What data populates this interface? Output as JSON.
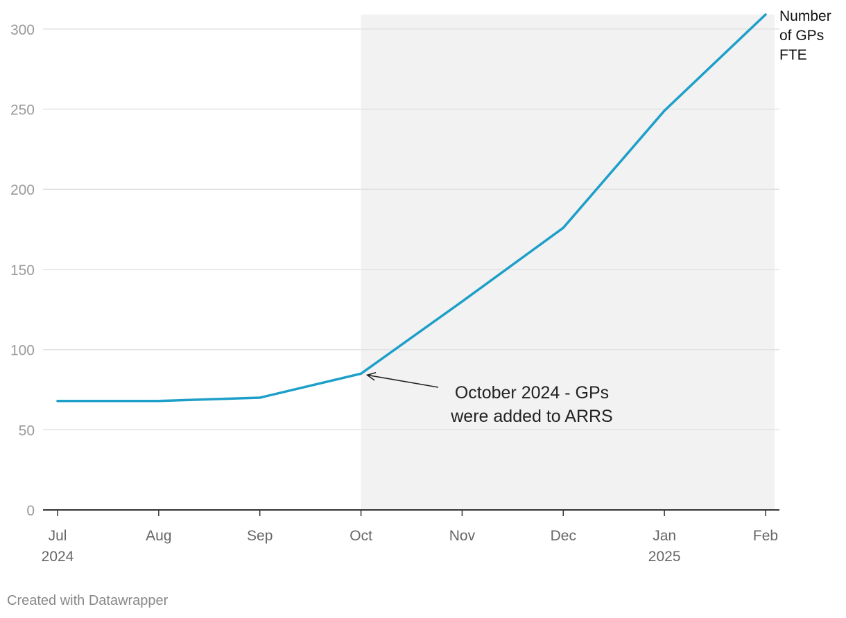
{
  "chart_data": {
    "type": "line",
    "x": [
      "Jul 2024",
      "Aug 2024",
      "Sep 2024",
      "Oct 2024",
      "Nov 2024",
      "Dec 2024",
      "Jan 2025",
      "Feb 2025"
    ],
    "x_tick_labels": [
      {
        "month": "Jul",
        "year": "2024"
      },
      {
        "month": "Aug",
        "year": ""
      },
      {
        "month": "Sep",
        "year": ""
      },
      {
        "month": "Oct",
        "year": ""
      },
      {
        "month": "Nov",
        "year": ""
      },
      {
        "month": "Dec",
        "year": ""
      },
      {
        "month": "Jan",
        "year": "2025"
      },
      {
        "month": "Feb",
        "year": ""
      }
    ],
    "series": [
      {
        "name": "Number of GPs FTE",
        "name_lines": [
          "Number",
          "of GPs",
          "FTE"
        ],
        "values": [
          68,
          68,
          70,
          85,
          130,
          176,
          249,
          309
        ],
        "color": "#1d9fc9"
      }
    ],
    "ylim": [
      0,
      309
    ],
    "y_ticks": [
      0,
      50,
      100,
      150,
      200,
      250,
      300
    ],
    "grid": true,
    "highlight_range": {
      "from": "Oct 2024",
      "to": "Feb 2025",
      "color": "#f2f2f2"
    },
    "annotation": {
      "lines": [
        "October 2024 - GPs",
        "were added to ARRS"
      ],
      "points_to": "Oct 2024"
    }
  },
  "footer": {
    "credit": "Created with Datawrapper"
  }
}
